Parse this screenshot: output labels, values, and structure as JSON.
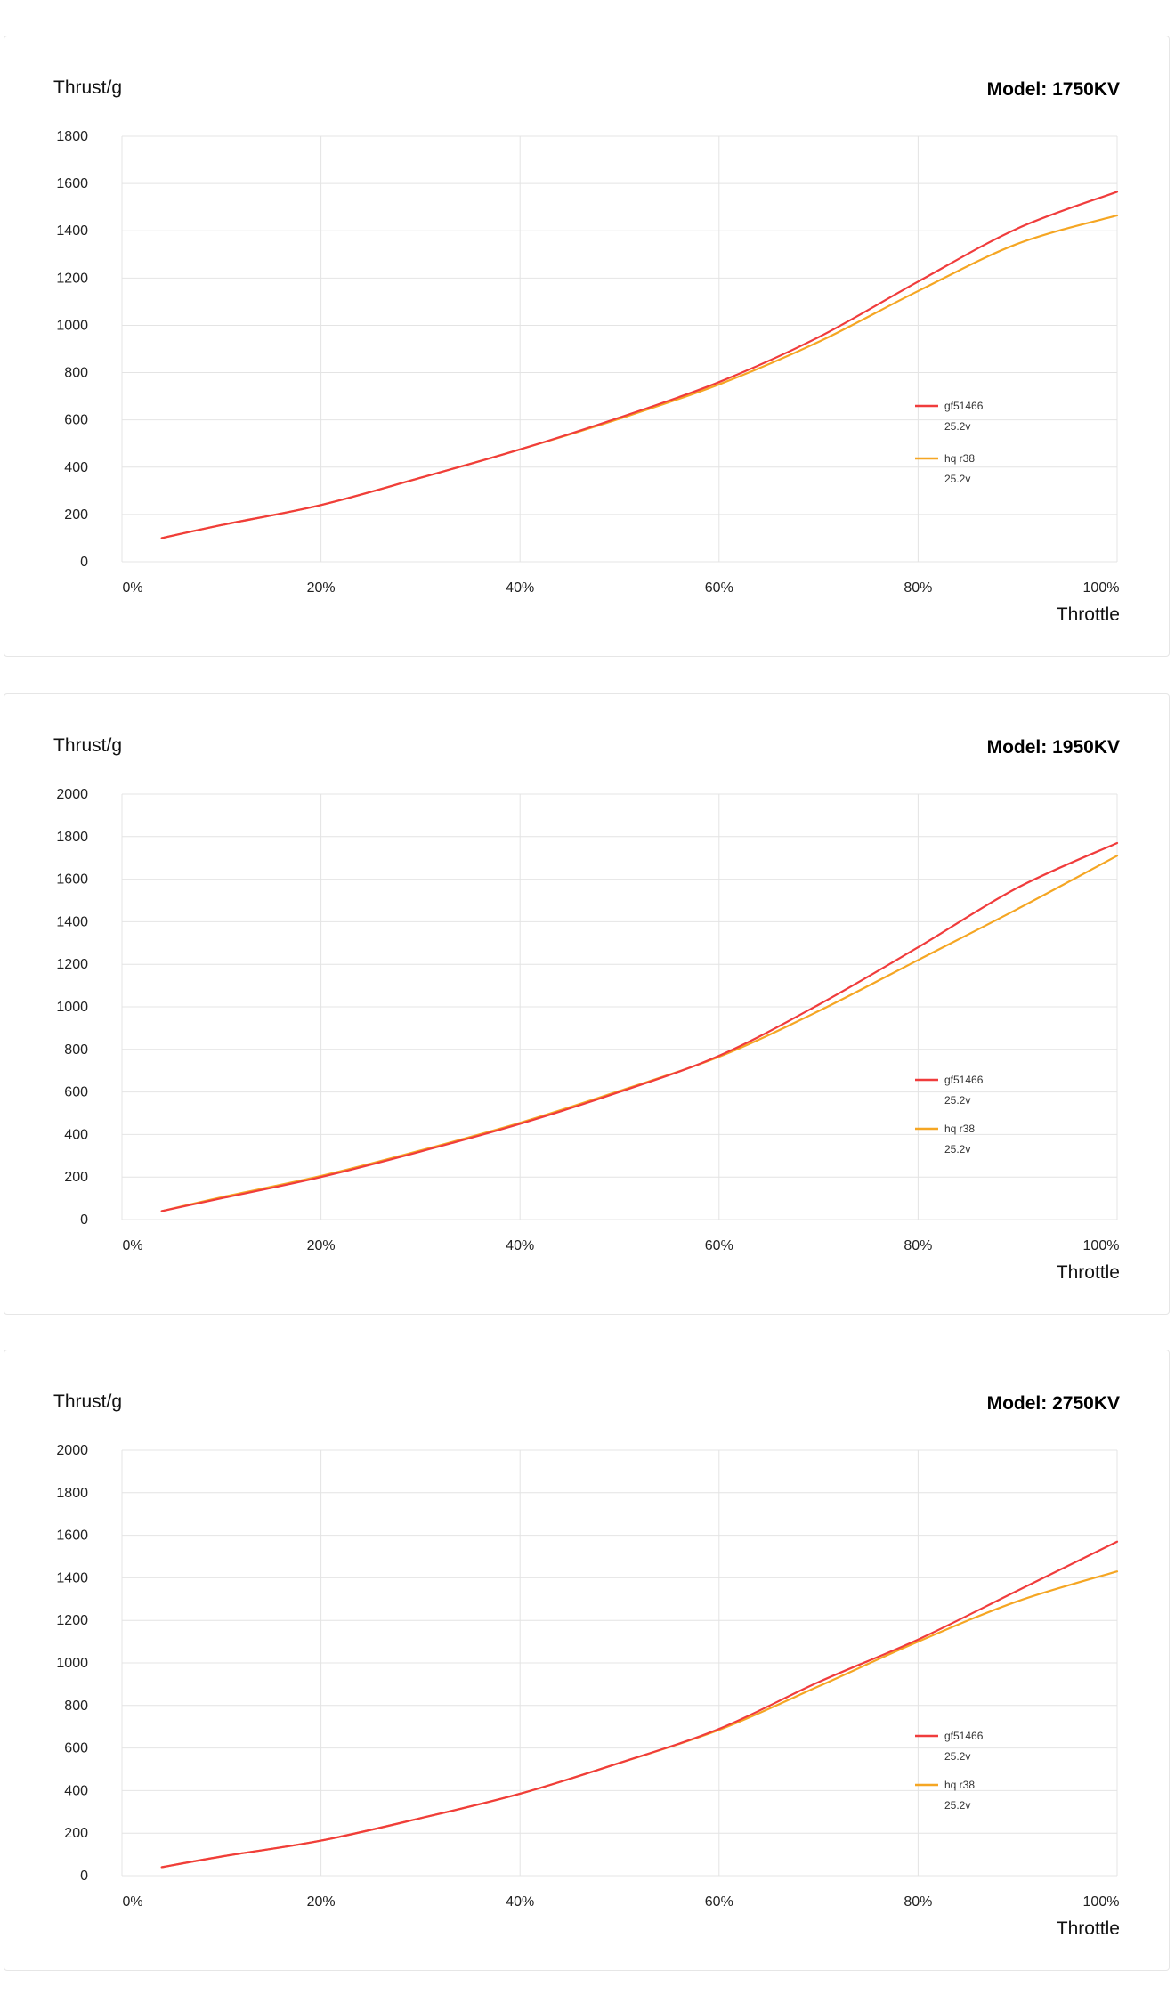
{
  "chart_data": [
    {
      "type": "line",
      "title": "Model: 1750KV",
      "ylabel": "Thrust/g",
      "xlabel": "Throttle",
      "ylim": [
        0,
        1800
      ],
      "yticks": [
        0,
        200,
        400,
        600,
        800,
        1000,
        1200,
        1400,
        1600,
        1800
      ],
      "xticks": [
        "0%",
        "20%",
        "40%",
        "60%",
        "80%",
        "100%"
      ],
      "x": [
        4,
        10,
        20,
        30,
        40,
        50,
        60,
        70,
        80,
        90,
        100
      ],
      "legend_position": "center-right",
      "series": [
        {
          "name": "gf51466",
          "sub": "25.2v",
          "color": "#f03c3c",
          "values": [
            100,
            155,
            240,
            355,
            475,
            610,
            760,
            950,
            1185,
            1410,
            1565
          ]
        },
        {
          "name": "hq r38",
          "sub": "25.2v",
          "color": "#f5a623",
          "values": [
            100,
            155,
            240,
            355,
            475,
            605,
            750,
            930,
            1145,
            1345,
            1465
          ]
        }
      ]
    },
    {
      "type": "line",
      "title": "Model: 1950KV",
      "ylabel": "Thrust/g",
      "xlabel": "Throttle",
      "ylim": [
        0,
        2000
      ],
      "yticks": [
        0,
        200,
        400,
        600,
        800,
        1000,
        1200,
        1400,
        1600,
        1800,
        2000
      ],
      "xticks": [
        "0%",
        "20%",
        "40%",
        "60%",
        "80%",
        "100%"
      ],
      "x": [
        4,
        10,
        20,
        30,
        40,
        50,
        60,
        70,
        80,
        90,
        100
      ],
      "legend_position": "center-right",
      "series": [
        {
          "name": "gf51466",
          "sub": "25.2v",
          "color": "#f03c3c",
          "values": [
            40,
            100,
            200,
            320,
            450,
            600,
            770,
            1010,
            1280,
            1560,
            1770
          ]
        },
        {
          "name": "hq r38",
          "sub": "25.2v",
          "color": "#f5a623",
          "values": [
            40,
            105,
            205,
            325,
            455,
            605,
            765,
            980,
            1220,
            1460,
            1710
          ]
        }
      ]
    },
    {
      "type": "line",
      "title": "Model: 2750KV",
      "ylabel": "Thrust/g",
      "xlabel": "Throttle",
      "ylim": [
        0,
        2000
      ],
      "yticks": [
        0,
        200,
        400,
        600,
        800,
        1000,
        1200,
        1400,
        1600,
        1800,
        2000
      ],
      "xticks": [
        "0%",
        "20%",
        "40%",
        "60%",
        "80%",
        "100%"
      ],
      "x": [
        4,
        10,
        20,
        30,
        40,
        50,
        60,
        70,
        80,
        90,
        100
      ],
      "legend_position": "center-right",
      "series": [
        {
          "name": "gf51466",
          "sub": "25.2v",
          "color": "#f03c3c",
          "values": [
            40,
            90,
            165,
            270,
            385,
            530,
            690,
            910,
            1110,
            1340,
            1570
          ]
        },
        {
          "name": "hq r38",
          "sub": "25.2v",
          "color": "#f5a623",
          "values": [
            40,
            90,
            165,
            270,
            385,
            530,
            685,
            890,
            1100,
            1290,
            1430
          ]
        }
      ]
    }
  ]
}
